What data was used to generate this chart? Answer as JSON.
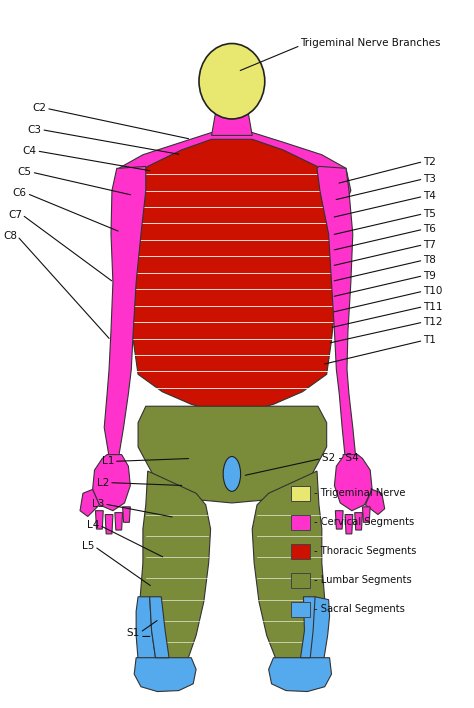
{
  "background_color": "#ffffff",
  "colors": {
    "trigeminal": "#e8e870",
    "cervical": "#ff33cc",
    "thoracic": "#cc1100",
    "lumbar": "#7a8c3a",
    "sacral": "#55aaee",
    "outline": "#222222"
  },
  "legend": [
    {
      "color": "#e8e870",
      "label": "- Trigeminal Nerve"
    },
    {
      "color": "#ff33cc",
      "label": "- Cervical Segments"
    },
    {
      "color": "#cc1100",
      "label": "- Thoracic Segments"
    },
    {
      "color": "#7a8c3a",
      "label": "- Lumbar Segments"
    },
    {
      "color": "#55aaee",
      "label": "- Sacral Segments"
    }
  ]
}
